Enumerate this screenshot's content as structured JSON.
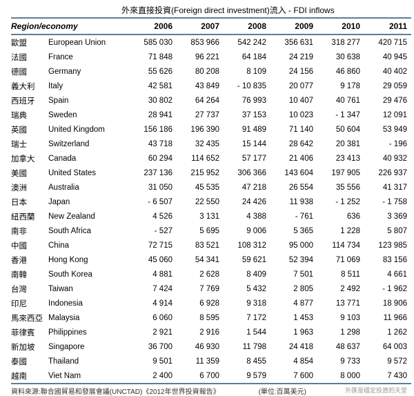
{
  "title": "外來直接投資(Foreign direct investment)流入 - FDI inflows",
  "header": {
    "region_label": "Region/economy",
    "years": [
      "2006",
      "2007",
      "2008",
      "2009",
      "2010",
      "2011"
    ]
  },
  "rows": [
    {
      "zh": "歐盟",
      "en": "European Union",
      "v": [
        "585 030",
        "853 966",
        "542 242",
        "356 631",
        "318 277",
        "420 715"
      ]
    },
    {
      "zh": "法國",
      "en": "France",
      "v": [
        "71 848",
        "96 221",
        "64 184",
        "24 219",
        "30 638",
        "40 945"
      ]
    },
    {
      "zh": "德國",
      "en": "Germany",
      "v": [
        "55 626",
        "80 208",
        "8 109",
        "24 156",
        "46 860",
        "40 402"
      ]
    },
    {
      "zh": "義大利",
      "en": "Italy",
      "v": [
        "42 581",
        "43 849",
        "- 10 835",
        "20 077",
        "9 178",
        "29 059"
      ]
    },
    {
      "zh": "西班牙",
      "en": "Spain",
      "v": [
        "30 802",
        "64 264",
        "76 993",
        "10 407",
        "40 761",
        "29 476"
      ]
    },
    {
      "zh": "瑞典",
      "en": "Sweden",
      "v": [
        "28 941",
        "27 737",
        "37 153",
        "10 023",
        "- 1 347",
        "12 091"
      ]
    },
    {
      "zh": "英國",
      "en": "United Kingdom",
      "v": [
        "156 186",
        "196 390",
        "91 489",
        "71 140",
        "50 604",
        "53 949"
      ]
    },
    {
      "zh": "瑞士",
      "en": "Switzerland",
      "v": [
        "43 718",
        "32 435",
        "15 144",
        "28 642",
        "20 381",
        "-  196"
      ]
    },
    {
      "zh": "加拿大",
      "en": "Canada",
      "v": [
        "60 294",
        "114 652",
        "57 177",
        "21 406",
        "23 413",
        "40 932"
      ]
    },
    {
      "zh": "美國",
      "en": "United States",
      "v": [
        "237 136",
        "215 952",
        "306 366",
        "143 604",
        "197 905",
        "226 937"
      ]
    },
    {
      "zh": "澳洲",
      "en": "Australia",
      "v": [
        "31 050",
        "45 535",
        "47 218",
        "26 554",
        "35 556",
        "41 317"
      ]
    },
    {
      "zh": "日本",
      "en": "Japan",
      "v": [
        "- 6 507",
        "22 550",
        "24 426",
        "11 938",
        "- 1 252",
        "- 1 758"
      ]
    },
    {
      "zh": "紐西蘭",
      "en": "New Zealand",
      "v": [
        "4 526",
        "3 131",
        "4 388",
        "-  761",
        "636",
        "3 369"
      ]
    },
    {
      "zh": "南非",
      "en": "South Africa",
      "v": [
        "-  527",
        "5 695",
        "9 006",
        "5 365",
        "1 228",
        "5 807"
      ]
    },
    {
      "zh": "中國",
      "en": "China",
      "v": [
        "72 715",
        "83 521",
        "108 312",
        "95 000",
        "114 734",
        "123 985"
      ]
    },
    {
      "zh": "香港",
      "en": "Hong Kong",
      "v": [
        "45 060",
        "54 341",
        "59 621",
        "52 394",
        "71 069",
        "83 156"
      ]
    },
    {
      "zh": "南韓",
      "en": "South Korea",
      "v": [
        "4 881",
        "2 628",
        "8 409",
        "7 501",
        "8 511",
        "4 661"
      ]
    },
    {
      "zh": "台灣",
      "en": "Taiwan",
      "v": [
        "7 424",
        "7 769",
        "5 432",
        "2 805",
        "2 492",
        "- 1 962"
      ]
    },
    {
      "zh": "印尼",
      "en": "Indonesia",
      "v": [
        "4 914",
        "6 928",
        "9 318",
        "4 877",
        "13 771",
        "18 906"
      ]
    },
    {
      "zh": "馬來西亞",
      "en": "Malaysia",
      "v": [
        "6 060",
        "8 595",
        "7 172",
        "1 453",
        "9 103",
        "11 966"
      ]
    },
    {
      "zh": "菲律賓",
      "en": "Philippines",
      "v": [
        "2 921",
        "2 916",
        "1 544",
        "1 963",
        "1 298",
        "1 262"
      ]
    },
    {
      "zh": "新加坡",
      "en": "Singapore",
      "v": [
        "36 700",
        "46 930",
        "11 798",
        "24 418",
        "48 637",
        "64 003"
      ]
    },
    {
      "zh": "泰國",
      "en": "Thailand",
      "v": [
        "9 501",
        "11 359",
        "8 455",
        "4 854",
        "9 733",
        "9 572"
      ]
    },
    {
      "zh": "越南",
      "en": "Viet Nam",
      "v": [
        "2 400",
        "6 700",
        "9 579",
        "7 600",
        "8 000",
        "7 430"
      ]
    }
  ],
  "footer": {
    "left": "資料來源:聯合國貿易和發展會議(UNCTAD)《2012年世界投資報告》",
    "mid": "(單位:百萬美元)",
    "right": "外匯是穩定投資的天堂"
  },
  "colors": {
    "rule": "#5b7e96",
    "text": "#000000",
    "background": "#ffffff"
  }
}
